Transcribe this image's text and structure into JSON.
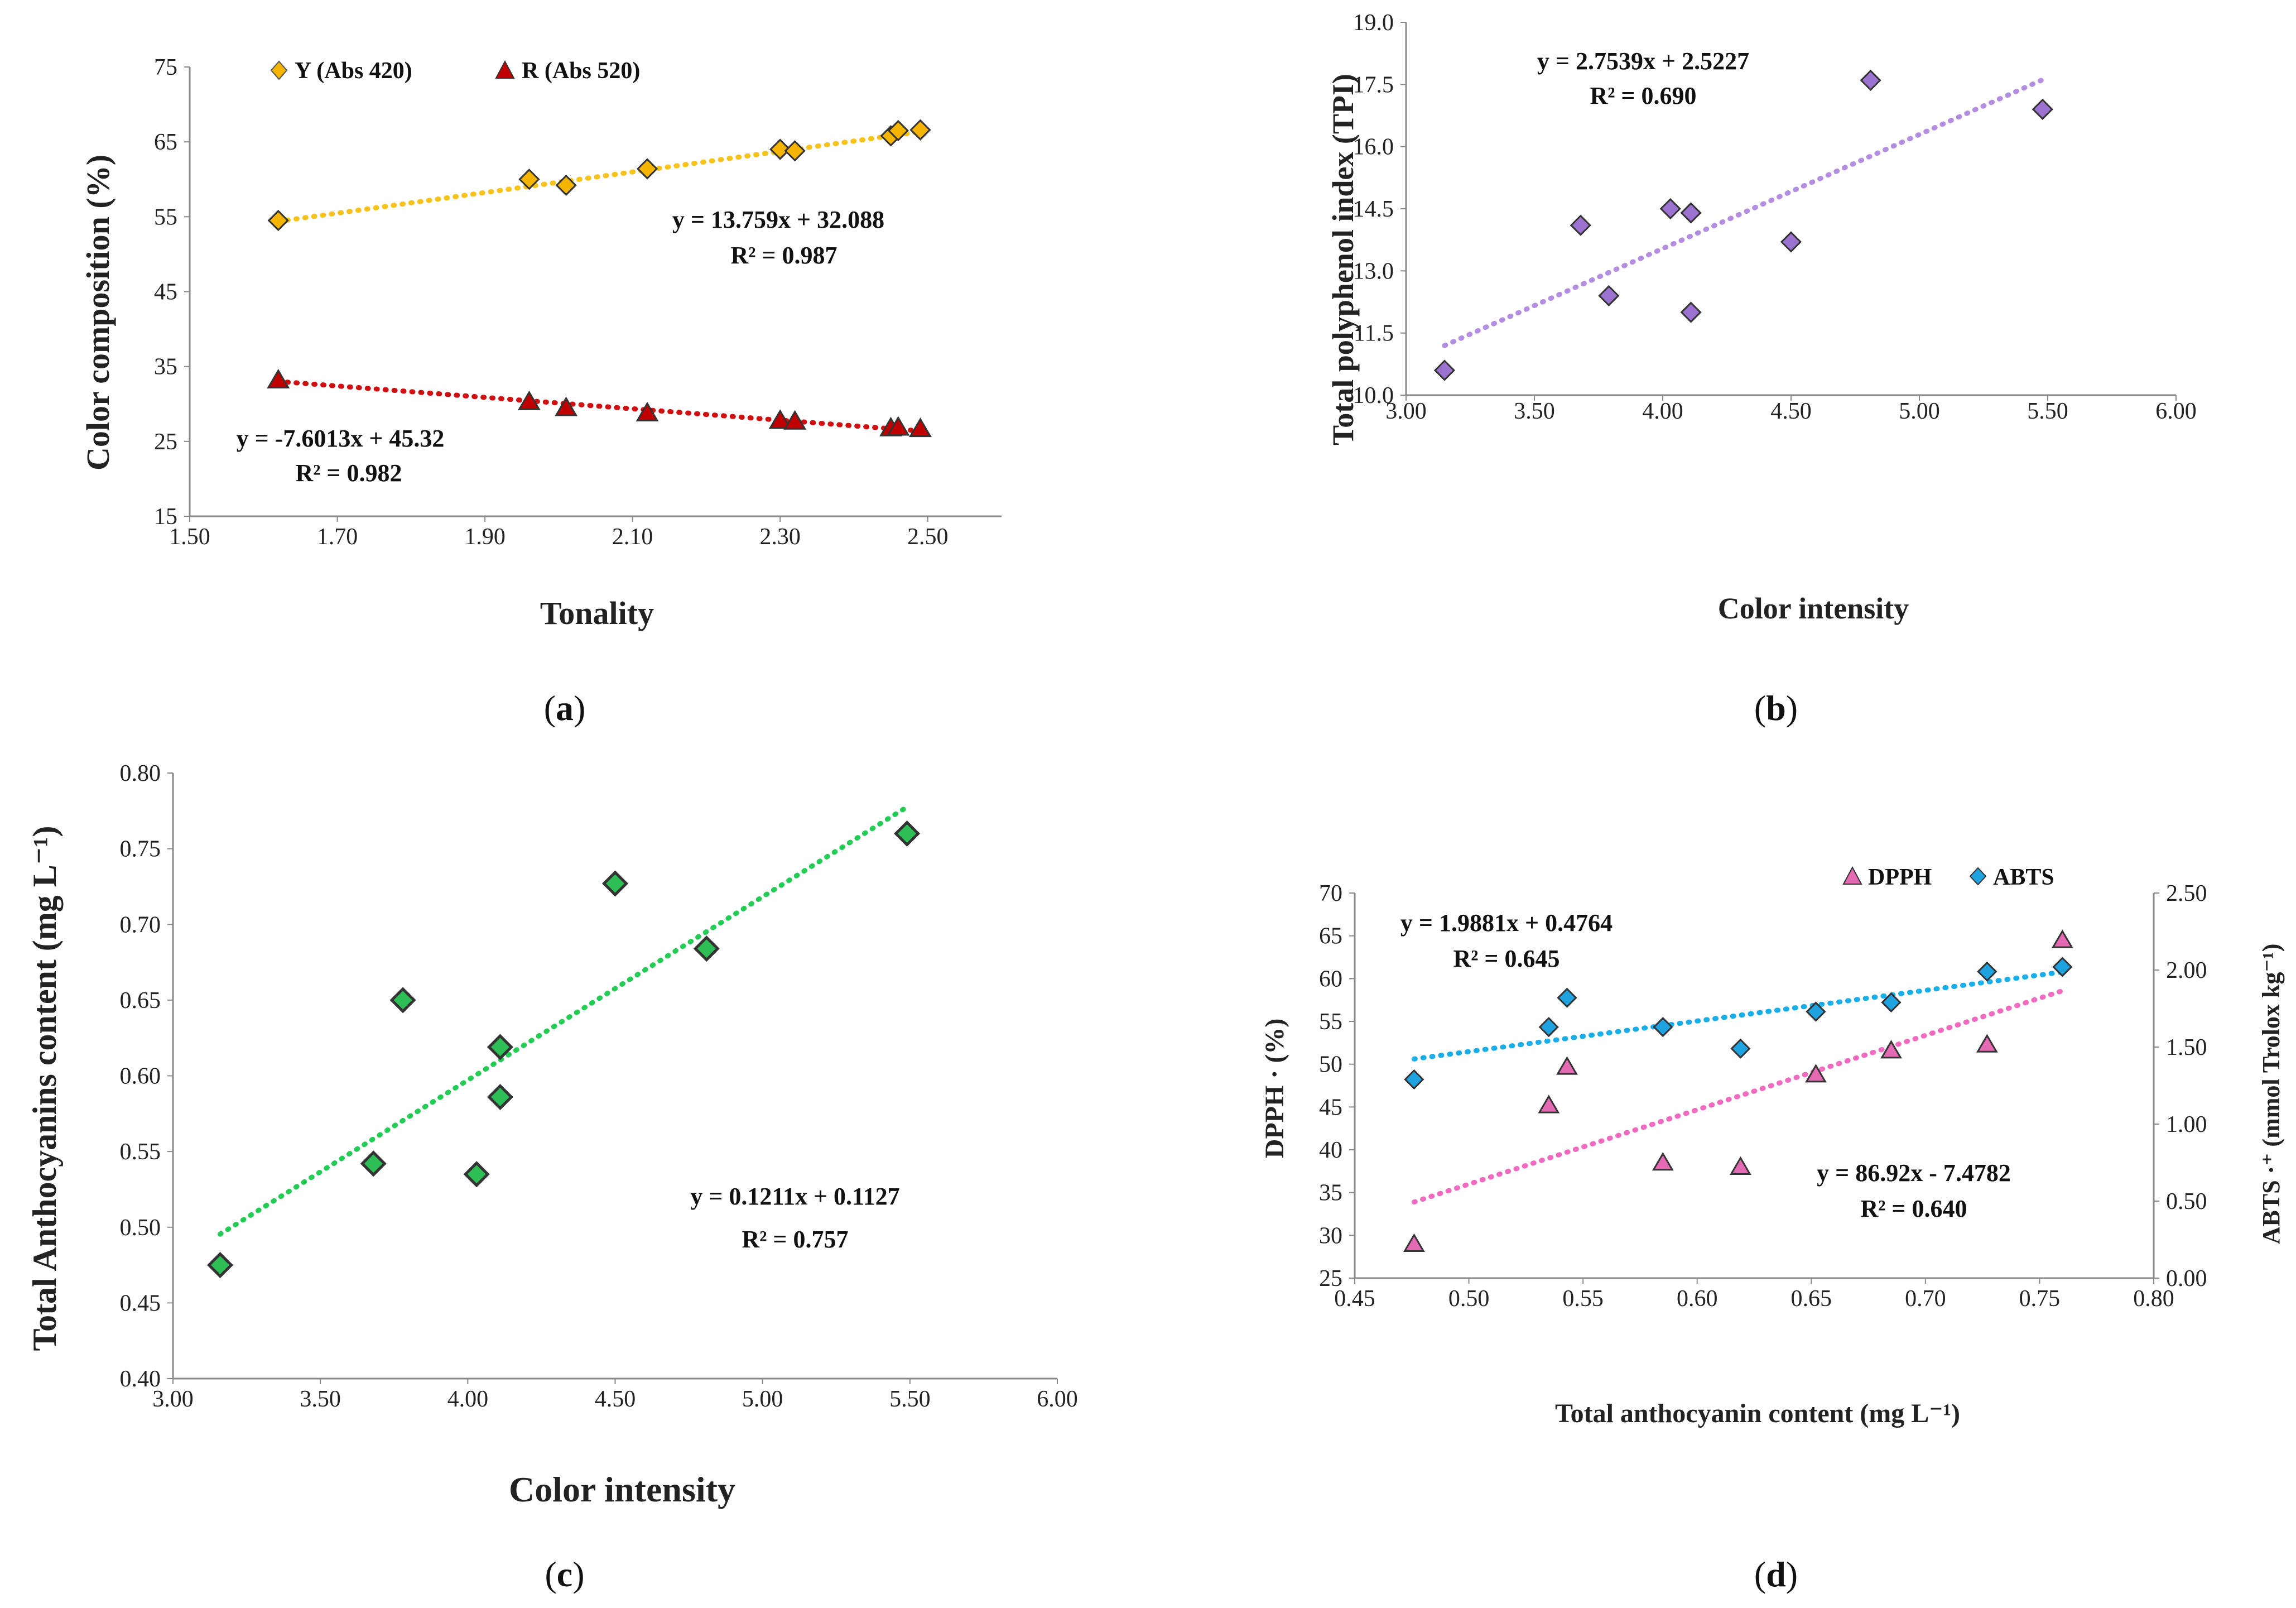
{
  "chart_data": [
    {
      "type": "scatter",
      "panel_label": "a",
      "xlabel": "Tonality",
      "ylabel": "Color composition (%)",
      "xlim": [
        1.5,
        2.6
      ],
      "ylim": [
        15,
        75
      ],
      "xticks": [
        1.5,
        1.7,
        1.9,
        2.1,
        2.3,
        2.5
      ],
      "yticks": [
        15,
        25,
        35,
        45,
        55,
        65,
        75
      ],
      "xtick_labels": [
        "1.50",
        "1.70",
        "1.90",
        "2.10",
        "2.30",
        "2.50"
      ],
      "ytick_labels": [
        "15",
        "25",
        "35",
        "45",
        "55",
        "65",
        "75"
      ],
      "grid": false,
      "legend_position": "top-left",
      "series": [
        {
          "name": "Y (Abs 420)",
          "marker": "diamond",
          "color": "#F4B400",
          "trend_color": "#F7C21A",
          "x": [
            1.62,
            1.96,
            2.01,
            2.12,
            2.3,
            2.32,
            2.45,
            2.46,
            2.49
          ],
          "y": [
            54.5,
            60.0,
            59.2,
            61.4,
            64.0,
            63.8,
            65.8,
            66.5,
            66.6
          ],
          "trend": {
            "slope": 13.759,
            "intercept": 32.088
          },
          "eq_label": "y = 13.759x + 32.088",
          "r2_label": "R² = 0.987"
        },
        {
          "name": "R (Abs 520)",
          "marker": "triangle",
          "color": "#C00000",
          "trend_color": "#D01010",
          "x": [
            1.62,
            1.96,
            2.01,
            2.12,
            2.3,
            2.32,
            2.45,
            2.46,
            2.49
          ],
          "y": [
            33.2,
            30.3,
            29.5,
            28.8,
            27.8,
            27.7,
            26.8,
            26.9,
            26.7
          ],
          "trend": {
            "slope": -7.6013,
            "intercept": 45.32
          },
          "eq_label": "y = -7.6013x + 45.32",
          "r2_label": "R² = 0.982"
        }
      ]
    },
    {
      "type": "scatter",
      "panel_label": "b",
      "xlabel": "Color intensity",
      "ylabel": "Total polyphenol index (TPI)",
      "xlim": [
        3.0,
        6.0
      ],
      "ylim": [
        10.0,
        19.0
      ],
      "xticks": [
        3.0,
        3.5,
        4.0,
        4.5,
        5.0,
        5.5,
        6.0
      ],
      "yticks": [
        10.0,
        11.5,
        13.0,
        14.5,
        16.0,
        17.5,
        19.0
      ],
      "xtick_labels": [
        "3.00",
        "3.50",
        "4.00",
        "4.50",
        "5.00",
        "5.50",
        "6.00"
      ],
      "ytick_labels": [
        "10.0",
        "11.5",
        "13.0",
        "14.5",
        "16.0",
        "17.5",
        "19.0"
      ],
      "grid": false,
      "series": [
        {
          "name": "TPI",
          "marker": "diamond",
          "color": "#9B72CF",
          "trend_color": "#B48EE0",
          "x": [
            3.15,
            3.68,
            3.79,
            4.03,
            4.11,
            4.11,
            4.5,
            4.81,
            5.48
          ],
          "y": [
            10.6,
            14.1,
            12.4,
            14.5,
            14.4,
            12.0,
            13.7,
            17.6,
            16.9
          ],
          "trend": {
            "slope": 2.7539,
            "intercept": 2.5227
          },
          "eq_label": "y = 2.7539x + 2.5227",
          "r2_label": "R² = 0.690"
        }
      ]
    },
    {
      "type": "scatter",
      "panel_label": "c",
      "xlabel": "Color intensity",
      "ylabel": "Total Anthocyanins content (mg L⁻¹)",
      "xlim": [
        3.0,
        6.0
      ],
      "ylim": [
        0.4,
        0.8
      ],
      "xticks": [
        3.0,
        3.5,
        4.0,
        4.5,
        5.0,
        5.5,
        6.0
      ],
      "yticks": [
        0.4,
        0.45,
        0.5,
        0.55,
        0.6,
        0.65,
        0.7,
        0.75,
        0.8
      ],
      "xtick_labels": [
        "3.00",
        "3.50",
        "4.00",
        "4.50",
        "5.00",
        "5.50",
        "6.00"
      ],
      "ytick_labels": [
        "0.40",
        "0.45",
        "0.50",
        "0.55",
        "0.60",
        "0.65",
        "0.70",
        "0.75",
        "0.80"
      ],
      "grid": false,
      "series": [
        {
          "name": "Total anthocyanins",
          "marker": "diamond",
          "color": "#2DBE55",
          "trend_color": "#22CC55",
          "x": [
            3.16,
            3.68,
            3.78,
            4.03,
            4.11,
            4.11,
            4.5,
            4.81,
            5.49
          ],
          "y": [
            0.475,
            0.542,
            0.65,
            0.535,
            0.586,
            0.619,
            0.727,
            0.684,
            0.76
          ],
          "trend": {
            "slope": 0.1211,
            "intercept": 0.1127
          },
          "eq_label": "y = 0.1211x + 0.1127",
          "r2_label": "R² = 0.757"
        }
      ]
    },
    {
      "type": "scatter",
      "panel_label": "d",
      "xlabel": "Total anthocyanin content (mg L⁻¹)",
      "ylabel": "DPPH · (%)",
      "ylabel_right": "ABTS ·⁺ (mmol Trolox kg⁻¹)",
      "xlim": [
        0.45,
        0.8
      ],
      "ylim": [
        25,
        70
      ],
      "ylim_right": [
        0.0,
        2.5
      ],
      "xticks": [
        0.45,
        0.5,
        0.55,
        0.6,
        0.65,
        0.7,
        0.75,
        0.8
      ],
      "yticks": [
        25,
        30,
        35,
        40,
        45,
        50,
        55,
        60,
        65,
        70
      ],
      "yticks_right": [
        0.0,
        0.5,
        1.0,
        1.5,
        2.0,
        2.5
      ],
      "xtick_labels": [
        "0.45",
        "0.50",
        "0.55",
        "0.60",
        "0.65",
        "0.70",
        "0.75",
        "0.80"
      ],
      "ytick_labels": [
        "25",
        "30",
        "35",
        "40",
        "45",
        "50",
        "55",
        "60",
        "65",
        "70"
      ],
      "ytick_labels_right": [
        "0.00",
        "0.50",
        "1.00",
        "1.50",
        "2.00",
        "2.50"
      ],
      "grid": false,
      "legend_position": "top-right",
      "series": [
        {
          "name": "DPPH",
          "axis": "left",
          "marker": "triangle",
          "color": "#E46AB4",
          "trend_color": "#F06AC0",
          "x": [
            0.476,
            0.535,
            0.543,
            0.585,
            0.619,
            0.652,
            0.685,
            0.727,
            0.76
          ],
          "y": [
            29.0,
            45.2,
            49.7,
            38.5,
            38.0,
            48.8,
            51.6,
            52.3,
            64.5
          ],
          "trend": {
            "slope": 86.92,
            "intercept": -7.4782
          },
          "eq_label": "y = 86.92x - 7.4782",
          "r2_label": "R² = 0.640"
        },
        {
          "name": "ABTS",
          "axis": "right",
          "marker": "diamond",
          "color": "#1FA3E0",
          "trend_color": "#1AAEE8",
          "x": [
            0.476,
            0.535,
            0.543,
            0.585,
            0.619,
            0.652,
            0.685,
            0.727,
            0.76
          ],
          "y": [
            1.29,
            1.63,
            1.82,
            1.63,
            1.49,
            1.73,
            1.79,
            1.99,
            2.02
          ],
          "trend": {
            "slope": 1.9881,
            "intercept": 0.4764
          },
          "eq_label": "y = 1.9881x + 0.4764",
          "r2_label": "R² = 0.645"
        }
      ]
    }
  ]
}
